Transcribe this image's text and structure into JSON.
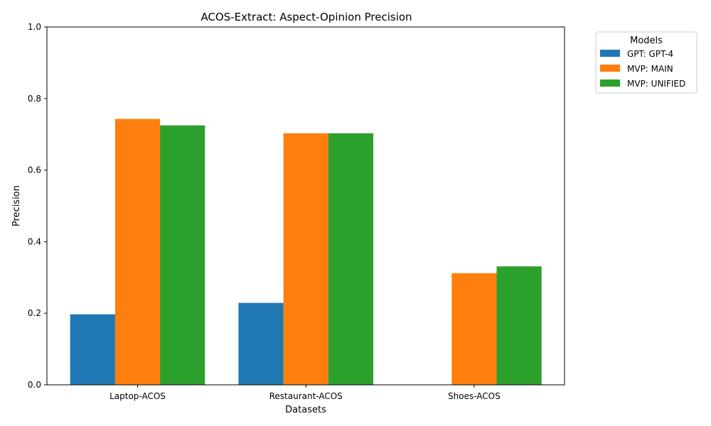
{
  "chart_data": {
    "type": "bar",
    "title": "ACOS-Extract: Aspect-Opinion Precision",
    "xlabel": "Datasets",
    "ylabel": "Precision",
    "ylim": [
      0,
      1.0
    ],
    "yticks": [
      "0.0",
      "0.2",
      "0.4",
      "0.6",
      "0.8",
      "1.0"
    ],
    "categories": [
      "Laptop-ACOS",
      "Restaurant-ACOS",
      "Shoes-ACOS"
    ],
    "series": [
      {
        "name": "GPT: GPT-4",
        "color": "#1f77b4",
        "values": [
          0.197,
          0.229,
          null
        ]
      },
      {
        "name": "MVP: MAIN",
        "color": "#ff7f0e",
        "values": [
          0.743,
          0.703,
          0.312
        ]
      },
      {
        "name": "MVP: UNIFIED",
        "color": "#2ca02c",
        "values": [
          0.725,
          0.703,
          0.331
        ]
      }
    ],
    "legend": {
      "title": "Models",
      "placement": "outside-top-right"
    },
    "grid": false
  }
}
